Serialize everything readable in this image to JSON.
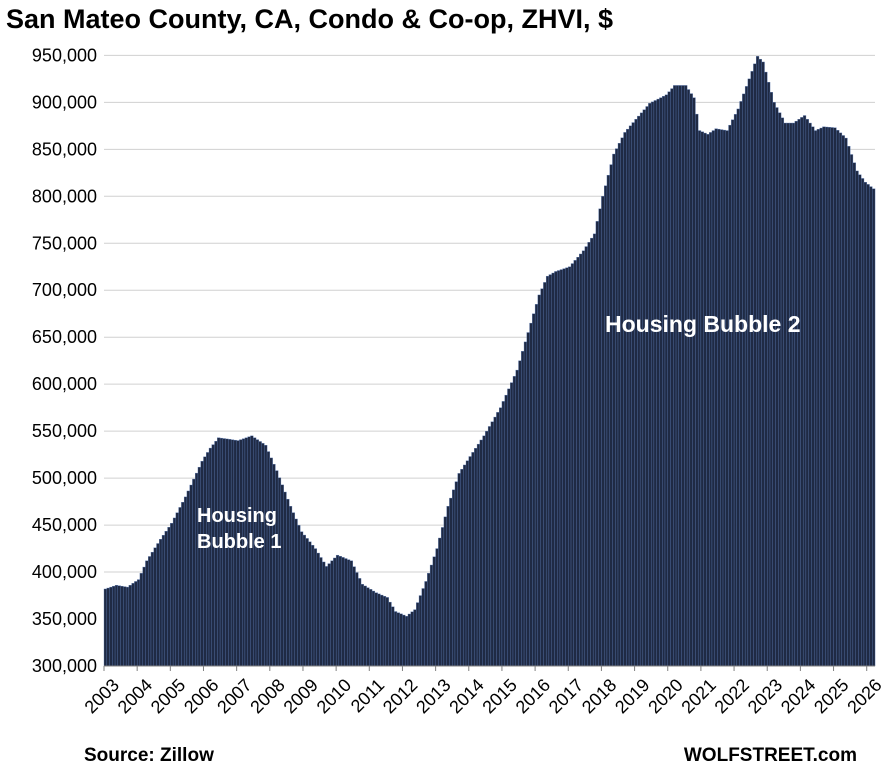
{
  "chart_data": {
    "type": "bar",
    "title": "San Mateo County, CA, Condo & Co-op, ZHVI, $",
    "xlabel": "",
    "ylabel": "",
    "ylim": [
      300000,
      960000
    ],
    "y_ticks": [
      300000,
      350000,
      400000,
      450000,
      500000,
      550000,
      600000,
      650000,
      700000,
      750000,
      800000,
      850000,
      900000,
      950000
    ],
    "y_tick_labels": [
      "300,000",
      "350,000",
      "400,000",
      "450,000",
      "500,000",
      "550,000",
      "600,000",
      "650,000",
      "700,000",
      "750,000",
      "800,000",
      "850,000",
      "900,000",
      "950,000"
    ],
    "x_tick_labels": [
      "2003",
      "2004",
      "2005",
      "2006",
      "2007",
      "2008",
      "2009",
      "2010",
      "2011",
      "2012",
      "2013",
      "2014",
      "2015",
      "2016",
      "2017",
      "2018",
      "2019",
      "2020",
      "2021",
      "2022",
      "2023",
      "2024",
      "2025",
      "2026"
    ],
    "grid": true,
    "bar_color": "#1f2a44",
    "frequency": "monthly",
    "start": "2003-01",
    "end": "2026-03",
    "keyframes": [
      [
        "2003-01",
        382000
      ],
      [
        "2003-05",
        386000
      ],
      [
        "2003-09",
        384000
      ],
      [
        "2004-01",
        392000
      ],
      [
        "2004-04",
        412000
      ],
      [
        "2004-09",
        435000
      ],
      [
        "2005-01",
        452000
      ],
      [
        "2005-06",
        480000
      ],
      [
        "2005-12",
        518000
      ],
      [
        "2006-03",
        532000
      ],
      [
        "2006-06",
        543000
      ],
      [
        "2007-01",
        540000
      ],
      [
        "2007-06",
        545000
      ],
      [
        "2007-11",
        535000
      ],
      [
        "2008-03",
        508000
      ],
      [
        "2008-08",
        470000
      ],
      [
        "2008-12",
        443000
      ],
      [
        "2009-05",
        425000
      ],
      [
        "2009-09",
        406000
      ],
      [
        "2010-01",
        418000
      ],
      [
        "2010-06",
        412000
      ],
      [
        "2010-10",
        387000
      ],
      [
        "2011-03",
        378000
      ],
      [
        "2011-07",
        373000
      ],
      [
        "2011-10",
        358000
      ],
      [
        "2012-02",
        353000
      ],
      [
        "2012-05",
        360000
      ],
      [
        "2012-09",
        390000
      ],
      [
        "2013-01",
        425000
      ],
      [
        "2013-05",
        470000
      ],
      [
        "2013-09",
        505000
      ],
      [
        "2014-01",
        523000
      ],
      [
        "2014-06",
        545000
      ],
      [
        "2014-12",
        575000
      ],
      [
        "2015-06",
        615000
      ],
      [
        "2015-10",
        655000
      ],
      [
        "2016-02",
        695000
      ],
      [
        "2016-05",
        715000
      ],
      [
        "2016-08",
        720000
      ],
      [
        "2017-01",
        725000
      ],
      [
        "2017-06",
        742000
      ],
      [
        "2017-10",
        760000
      ],
      [
        "2018-01",
        800000
      ],
      [
        "2018-05",
        845000
      ],
      [
        "2018-09",
        868000
      ],
      [
        "2019-01",
        882000
      ],
      [
        "2019-06",
        899000
      ],
      [
        "2019-12",
        908000
      ],
      [
        "2020-03",
        918000
      ],
      [
        "2020-07",
        918000
      ],
      [
        "2020-10",
        905000
      ],
      [
        "2020-12",
        870000
      ],
      [
        "2021-03",
        866000
      ],
      [
        "2021-06",
        872000
      ],
      [
        "2021-10",
        870000
      ],
      [
        "2022-02",
        893000
      ],
      [
        "2022-06",
        925000
      ],
      [
        "2022-09",
        949000
      ],
      [
        "2022-11",
        943000
      ],
      [
        "2023-03",
        900000
      ],
      [
        "2023-07",
        878000
      ],
      [
        "2023-10",
        878000
      ],
      [
        "2024-02",
        886000
      ],
      [
        "2024-06",
        870000
      ],
      [
        "2024-09",
        874000
      ],
      [
        "2025-01",
        873000
      ],
      [
        "2025-05",
        862000
      ],
      [
        "2025-09",
        827000
      ],
      [
        "2025-12",
        815000
      ],
      [
        "2026-03",
        808000
      ]
    ],
    "annotations": [
      {
        "id": "bubble1",
        "lines": [
          "Housing",
          "Bubble 1"
        ]
      },
      {
        "id": "bubble2",
        "lines": [
          "Housing Bubble 2"
        ]
      }
    ]
  },
  "footer": {
    "source": "Source: Zillow",
    "brand": "WOLFSTREET.com"
  }
}
